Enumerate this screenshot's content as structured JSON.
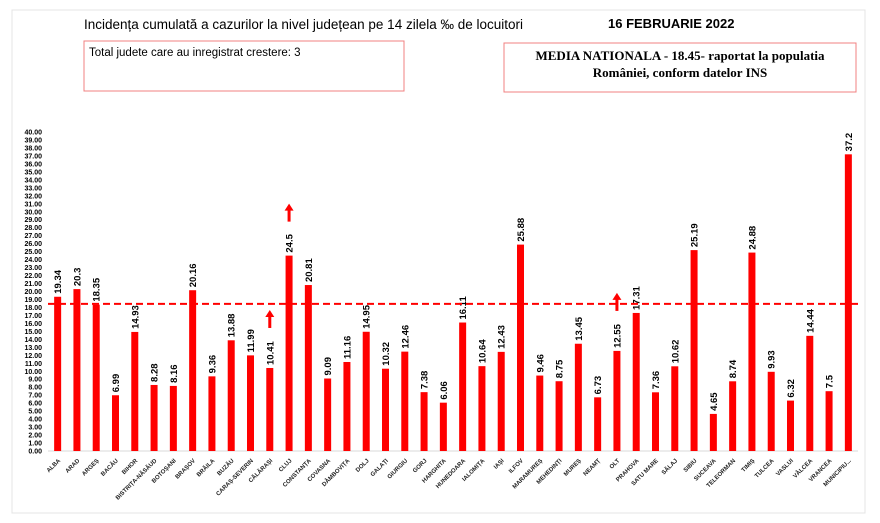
{
  "header": {
    "title": "Incidența cumulată a cazurilor la nivel județean pe 14 zilela ‰ de locuitori",
    "date": "16 FEBRUARIE 2022",
    "increase_box": "Total judete care au inregistrat crestere: 3",
    "national_line1": "MEDIA NATIONALA - 18.45-  raportat la populatia",
    "national_line2": "României, conform datelor INS"
  },
  "colors": {
    "bar": "#FF0000",
    "average_line": "#FF0000",
    "box_border": "#F08080",
    "arrow": "#FF0000"
  },
  "chart_data": {
    "type": "bar",
    "title": "Incidența cumulată a cazurilor la nivel județean pe 14 zilela ‰ de locuitori",
    "xlabel": "",
    "ylabel": "",
    "ylim": [
      0,
      40
    ],
    "ytick_step": 1,
    "ytick_format": "0.00",
    "grid": false,
    "average_line": {
      "value": 18.45,
      "style": "dashed"
    },
    "increase_arrows": [
      "CĂLĂRAȘI",
      "CLUJ",
      "OLT"
    ],
    "categories": [
      "ALBA",
      "ARAD",
      "ARGEȘ",
      "BACĂU",
      "BIHOR",
      "BISTRIȚA-NĂSĂUD",
      "BOTOȘANI",
      "BRAȘOV",
      "BRĂILA",
      "BUZĂU",
      "CARAȘ-SEVERIN",
      "CĂLĂRAȘI",
      "CLUJ",
      "CONSTANȚA",
      "COVASNA",
      "DÂMBOVIȚA",
      "DOLJ",
      "GALAȚI",
      "GIURGIU",
      "GORJ",
      "HARGHITA",
      "HUNEDOARA",
      "IALOMIȚA",
      "IAȘI",
      "ILFOV",
      "MARAMUREȘ",
      "MEHEDINȚI",
      "MUREȘ",
      "NEAMȚ",
      "OLT",
      "PRAHOVA",
      "SATU MARE",
      "SĂLAJ",
      "SIBIU",
      "SUCEAVA",
      "TELEORMAN",
      "TIMIȘ",
      "TULCEA",
      "VASLUI",
      "VÂLCEA",
      "VRANCEA",
      "MUNICIPIU..."
    ],
    "values": [
      19.34,
      20.3,
      18.35,
      6.99,
      14.93,
      8.28,
      8.16,
      20.16,
      9.36,
      13.88,
      11.99,
      10.41,
      24.5,
      20.81,
      9.09,
      11.16,
      14.95,
      10.32,
      12.46,
      7.38,
      6.06,
      16.11,
      10.64,
      12.43,
      25.88,
      9.46,
      8.75,
      13.45,
      6.73,
      12.55,
      17.31,
      7.36,
      10.62,
      25.19,
      4.65,
      8.74,
      24.88,
      9.93,
      6.32,
      14.44,
      7.5,
      37.2
    ]
  }
}
